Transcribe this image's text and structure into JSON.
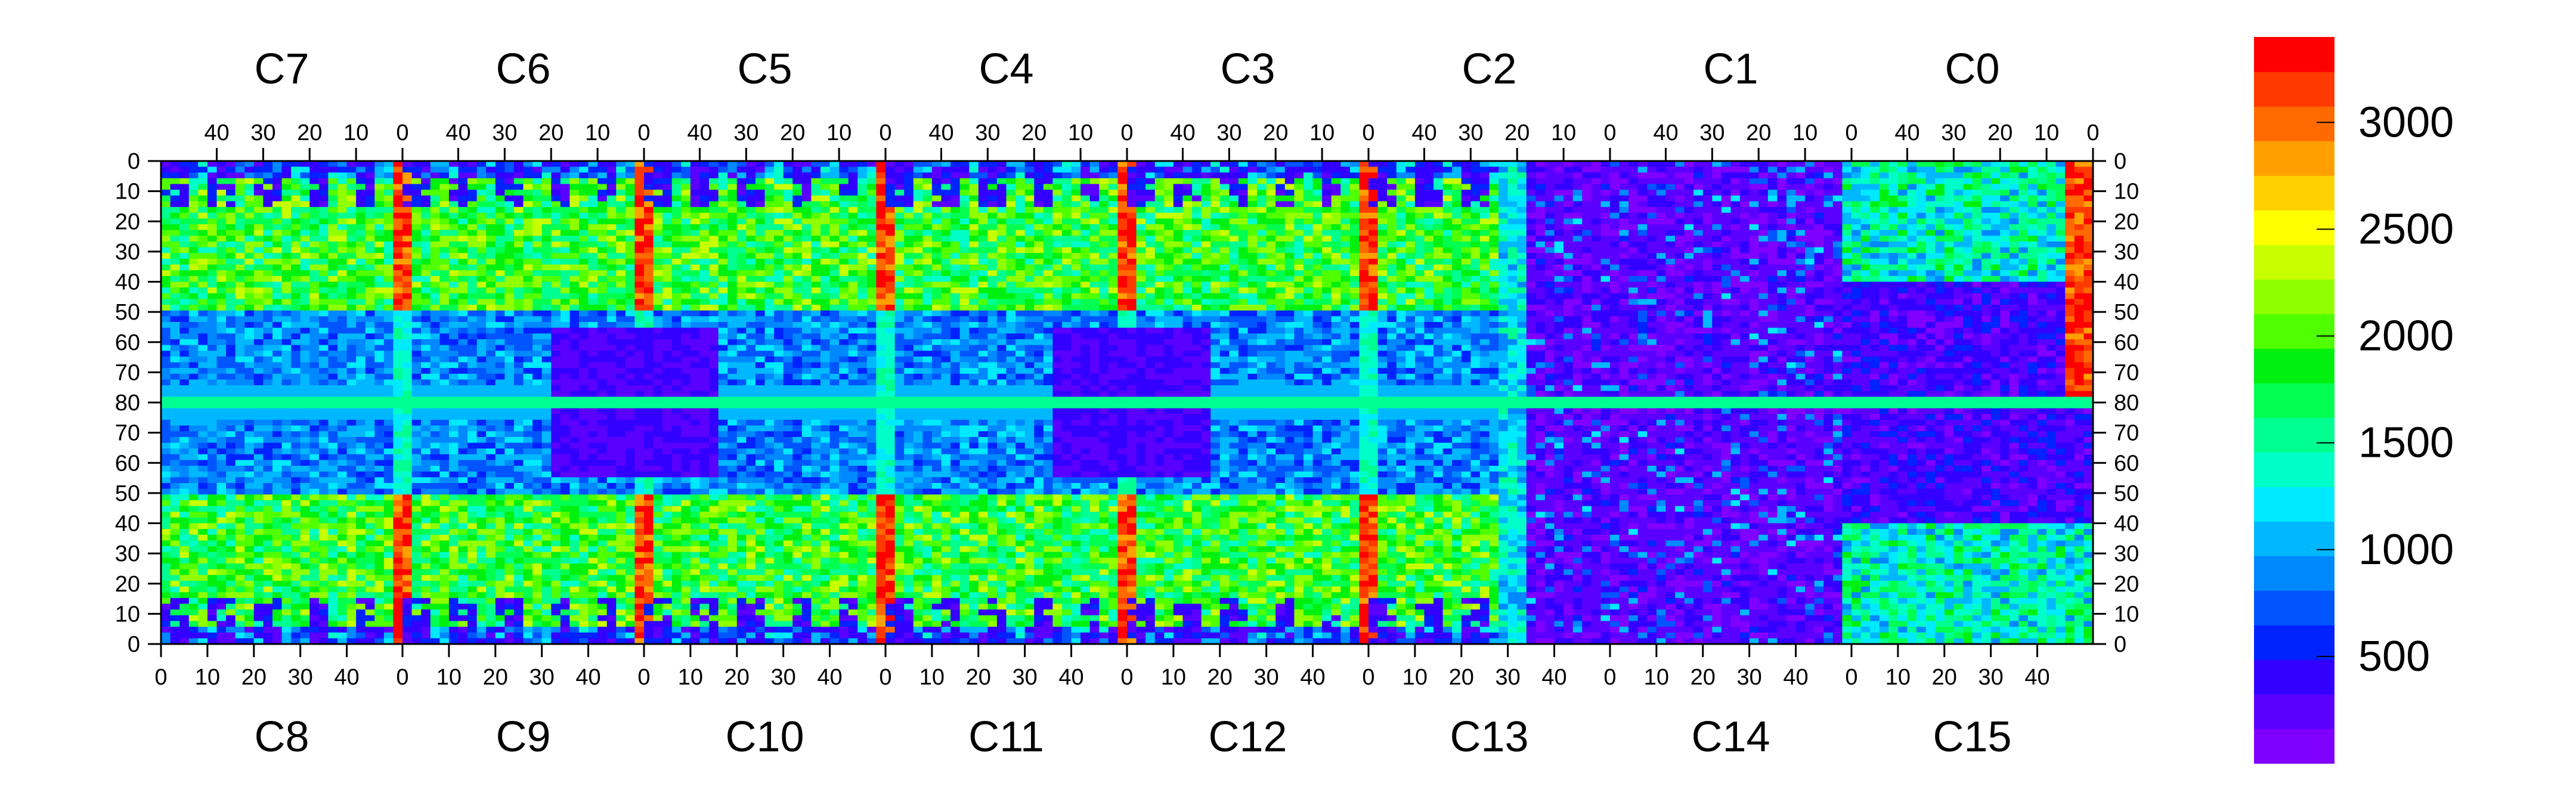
{
  "chart_data": {
    "type": "heatmap",
    "title": "",
    "xlabel": "",
    "ylabel": "",
    "top_chip_labels": [
      "C7",
      "C6",
      "C5",
      "C4",
      "C3",
      "C2",
      "C1",
      "C0"
    ],
    "bottom_chip_labels": [
      "C8",
      "C9",
      "C10",
      "C11",
      "C12",
      "C13",
      "C14",
      "C15"
    ],
    "top_tick_labels": [
      "40",
      "30",
      "20",
      "10",
      "0"
    ],
    "bottom_tick_labels": [
      "0",
      "10",
      "20",
      "30",
      "40"
    ],
    "chip_columns": 52,
    "y_tick_labels": [
      "0",
      "10",
      "20",
      "30",
      "40",
      "50",
      "60",
      "70",
      "80",
      "70",
      "60",
      "50",
      "40",
      "30",
      "20",
      "10",
      "0"
    ],
    "z_ticks": [
      500,
      1000,
      1500,
      2000,
      2500,
      3000
    ],
    "z_range": [
      0,
      3400
    ],
    "grid": false,
    "colorbar": [
      {
        "level": 0,
        "color": "#8000ff"
      },
      {
        "level": 1,
        "color": "#5a00ff"
      },
      {
        "level": 2,
        "color": "#3300ff"
      },
      {
        "level": 3,
        "color": "#0022ff"
      },
      {
        "level": 4,
        "color": "#0055ff"
      },
      {
        "level": 5,
        "color": "#0088ff"
      },
      {
        "level": 6,
        "color": "#00b8ff"
      },
      {
        "level": 7,
        "color": "#00eaff"
      },
      {
        "level": 8,
        "color": "#00ffc8"
      },
      {
        "level": 9,
        "color": "#00ff90"
      },
      {
        "level": 10,
        "color": "#00ff50"
      },
      {
        "level": 11,
        "color": "#00f010"
      },
      {
        "level": 12,
        "color": "#50ff00"
      },
      {
        "level": 13,
        "color": "#90ff00"
      },
      {
        "level": 14,
        "color": "#c8ff00"
      },
      {
        "level": 15,
        "color": "#ffff00"
      },
      {
        "level": 16,
        "color": "#ffd000"
      },
      {
        "level": 17,
        "color": "#ffa000"
      },
      {
        "level": 18,
        "color": "#ff6a00"
      },
      {
        "level": 19,
        "color": "#ff3a00"
      },
      {
        "level": 20,
        "color": "#ff0000"
      }
    ]
  }
}
